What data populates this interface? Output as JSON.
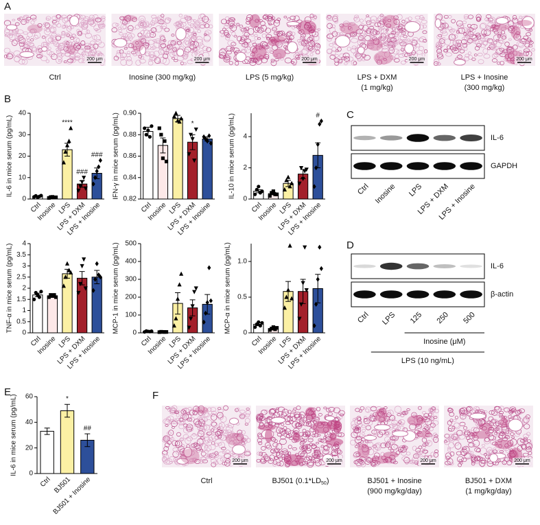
{
  "panel_labels": [
    "A",
    "B",
    "C",
    "D",
    "E",
    "F"
  ],
  "panel_a": {
    "scale_bar": "200 μm",
    "captions": [
      [
        "Ctrl"
      ],
      [
        "Inosine (300 mg/kg)"
      ],
      [
        "LPS (5 mg/kg)"
      ],
      [
        "LPS + DXM",
        "(1 mg/kg)"
      ],
      [
        "LPS + Inosine",
        "(300 mg/kg)"
      ]
    ]
  },
  "panel_c": {
    "lanes": [
      "Ctrl",
      "Inosine",
      "LPS",
      "LPS + DXM",
      "LPS + Inosine"
    ],
    "bands": [
      "IL-6",
      "GAPDH"
    ]
  },
  "panel_d": {
    "lanes": [
      "Ctrl",
      "LPS",
      "125",
      "250",
      "500"
    ],
    "bands": [
      "IL-6",
      "β-actin"
    ],
    "inosine_label": "Inosine (μM)",
    "lps_label": "LPS (10 ng/mL)"
  },
  "panel_f": {
    "scale_bar": "200 μm",
    "captions": [
      [
        "Ctrl"
      ],
      [
        {
          "text": "BJ501 (0.1*LD",
          "sub": "50",
          "end": ")"
        }
      ],
      [
        "BJ501 + Inosine",
        "(900 mg/kg/day)"
      ],
      [
        "BJ501 + DXM",
        "(1 mg/kg/day)"
      ]
    ]
  },
  "chart_data": [
    {
      "type": "bar",
      "ylabel": "IL-6 in mice serum (pg/mL)",
      "categories": [
        "Ctrl",
        "Inosine",
        "LPS",
        "LPS + DXM",
        "LPS + Inosine"
      ],
      "colors": [
        "#ffffff",
        "#fde8e8",
        "#fbf0a4",
        "#a3202b",
        "#2d4f9a"
      ],
      "values": [
        1.2,
        0.8,
        23,
        7,
        12
      ],
      "errors": [
        0.3,
        0.2,
        3,
        1.5,
        2.5
      ],
      "points": [
        [
          1,
          1.5,
          0.8,
          1.2,
          1.6
        ],
        [
          0.5,
          0.9,
          1,
          0.7,
          0.8
        ],
        [
          17,
          22,
          25,
          27,
          33
        ],
        [
          4,
          6,
          8,
          10,
          5
        ],
        [
          7,
          10,
          13,
          15,
          18
        ]
      ],
      "annotations": [
        null,
        null,
        "****",
        "###",
        "###"
      ],
      "ylim": [
        0,
        40
      ],
      "yticks": [
        0,
        10,
        20,
        30,
        40
      ]
    },
    {
      "type": "bar",
      "ylabel": "IFN-γ in mice serum (pg/mL)",
      "categories": [
        "Ctrl",
        "Inosine",
        "LPS",
        "LPS + DXM",
        "LPS + Inosine"
      ],
      "colors": [
        "#ffffff",
        "#fde8e8",
        "#fbf0a4",
        "#a3202b",
        "#2d4f9a"
      ],
      "values": [
        0.883,
        0.87,
        0.895,
        0.873,
        0.876
      ],
      "errors": [
        0.004,
        0.007,
        0.003,
        0.007,
        0.002
      ],
      "points": [
        [
          0.886,
          0.88,
          0.884,
          0.878,
          0.888
        ],
        [
          0.886,
          0.88,
          0.858,
          0.874,
          0.855
        ],
        [
          0.897,
          0.9,
          0.893,
          0.892,
          0.895
        ],
        [
          0.862,
          0.88,
          0.876,
          0.856,
          0.885
        ],
        [
          0.878,
          0.876,
          0.874,
          0.879,
          0.872
        ]
      ],
      "annotations": [
        null,
        null,
        null,
        "*",
        null
      ],
      "ylim": [
        0.82,
        0.9
      ],
      "yticks": [
        0.82,
        0.84,
        0.86,
        0.88,
        {
          "value": 0.9,
          "label": "0.90"
        }
      ]
    },
    {
      "type": "bar",
      "ylabel": "IL-10 in mice serum (pg/mL)",
      "categories": [
        "Ctrl",
        "Inosine",
        "LPS",
        "LPS + DXM",
        "LPS + Inosine"
      ],
      "colors": [
        "#ffffff",
        "#fde8e8",
        "#fbf0a4",
        "#a3202b",
        "#2d4f9a"
      ],
      "values": [
        0.5,
        0.35,
        1,
        1.6,
        2.8
      ],
      "errors": [
        0.1,
        0.08,
        0.2,
        0.3,
        0.8
      ],
      "points": [
        [
          0.3,
          0.6,
          0.8,
          0.4,
          0.5
        ],
        [
          0.2,
          0.4,
          0.5,
          0.3,
          0.3
        ],
        [
          0.6,
          1.2,
          1.4,
          0.8,
          1
        ],
        [
          1,
          2,
          1.3,
          1.8,
          1.9
        ],
        [
          0.8,
          2,
          3.5,
          4.8,
          5
        ]
      ],
      "annotations": [
        null,
        null,
        null,
        null,
        "#"
      ],
      "ylim": [
        0,
        5.5
      ],
      "yticks": [
        0,
        2,
        4
      ]
    },
    {
      "type": "bar",
      "ylabel": "TNF-α in mice serum (pg/mL)",
      "categories": [
        "Ctrl",
        "Inosine",
        "LPS",
        "LPS + DXM",
        "LPS + Inosine"
      ],
      "colors": [
        "#ffffff",
        "#fde8e8",
        "#fbf0a4",
        "#a3202b",
        "#2d4f9a"
      ],
      "values": [
        1.7,
        1.65,
        2.65,
        2.45,
        2.5
      ],
      "errors": [
        0.08,
        0.05,
        0.2,
        0.3,
        0.3
      ],
      "points": [
        [
          1.5,
          1.8,
          1.7,
          1.6,
          1.85
        ],
        [
          1.6,
          1.7,
          1.65,
          1.7,
          1.6
        ],
        [
          2.1,
          2.5,
          3.1,
          2.8,
          2.7
        ],
        [
          1.8,
          2.2,
          3,
          3.3,
          2
        ],
        [
          1.9,
          2.4,
          3.1,
          2.6,
          2.5
        ]
      ],
      "annotations": [
        null,
        null,
        null,
        null,
        null
      ],
      "ylim": [
        0,
        4
      ],
      "yticks": [
        0,
        0.5,
        1,
        1.5,
        2,
        2.5,
        3,
        3.5,
        4
      ]
    },
    {
      "type": "bar",
      "ylabel": "MCP-1 in mice serum (pg/mL)",
      "categories": [
        "Ctrl",
        "Inosine",
        "LPS",
        "LPS + DXM",
        "LPS + Inosine"
      ],
      "colors": [
        "#ffffff",
        "#fde8e8",
        "#fbf0a4",
        "#a3202b",
        "#2d4f9a"
      ],
      "values": [
        8,
        5,
        165,
        140,
        160
      ],
      "errors": [
        2,
        1,
        60,
        45,
        55
      ],
      "points": [
        [
          5,
          10,
          8,
          7,
          9
        ],
        [
          4,
          6,
          5,
          5,
          5
        ],
        [
          40,
          80,
          190,
          270,
          330
        ],
        [
          30,
          80,
          150,
          230,
          250
        ],
        [
          60,
          110,
          170,
          365,
          180
        ]
      ],
      "annotations": [
        null,
        null,
        null,
        null,
        null
      ],
      "ylim": [
        0,
        500
      ],
      "yticks": [
        0,
        100,
        200,
        300,
        400,
        500
      ]
    },
    {
      "type": "bar",
      "ylabel": "MCP-α in mice serum (pg/mL)",
      "categories": [
        "Ctrl",
        "Inosine",
        "LPS",
        "LPS + DXM",
        "LPS + Inosine"
      ],
      "colors": [
        "#ffffff",
        "#fde8e8",
        "#fbf0a4",
        "#a3202b",
        "#2d4f9a"
      ],
      "values": [
        0.12,
        0.06,
        0.58,
        0.58,
        0.62
      ],
      "errors": [
        0.02,
        0.01,
        0.14,
        0.17,
        0.2
      ],
      "points": [
        [
          0.08,
          0.12,
          0.15,
          0.1,
          0.14
        ],
        [
          0.04,
          0.06,
          0.08,
          0.05,
          0.07
        ],
        [
          0.35,
          0.5,
          0.6,
          1.22,
          0.48
        ],
        [
          0.2,
          0.4,
          0.7,
          1.2,
          0.6
        ],
        [
          0.1,
          0.4,
          0.75,
          1.2,
          0.9
        ]
      ],
      "annotations": [
        null,
        null,
        null,
        null,
        null
      ],
      "ylim": [
        0,
        1.25
      ],
      "yticks": [
        0,
        0.5,
        {
          "value": 1,
          "label": "1.0"
        }
      ]
    },
    {
      "type": "bar",
      "ylabel": "IL-6 in mice serum (pg/mL)",
      "categories": [
        "Ctrl",
        "BJ501",
        "BJ501 + Inosine"
      ],
      "colors": [
        "#ffffff",
        "#fbf0a4",
        "#2d4f9a"
      ],
      "values": [
        33,
        49,
        26
      ],
      "errors": [
        2.5,
        5,
        5
      ],
      "annotations": [
        null,
        "*",
        "##"
      ],
      "ylim": [
        0,
        60
      ],
      "yticks": [
        0,
        20,
        40,
        60
      ]
    }
  ]
}
